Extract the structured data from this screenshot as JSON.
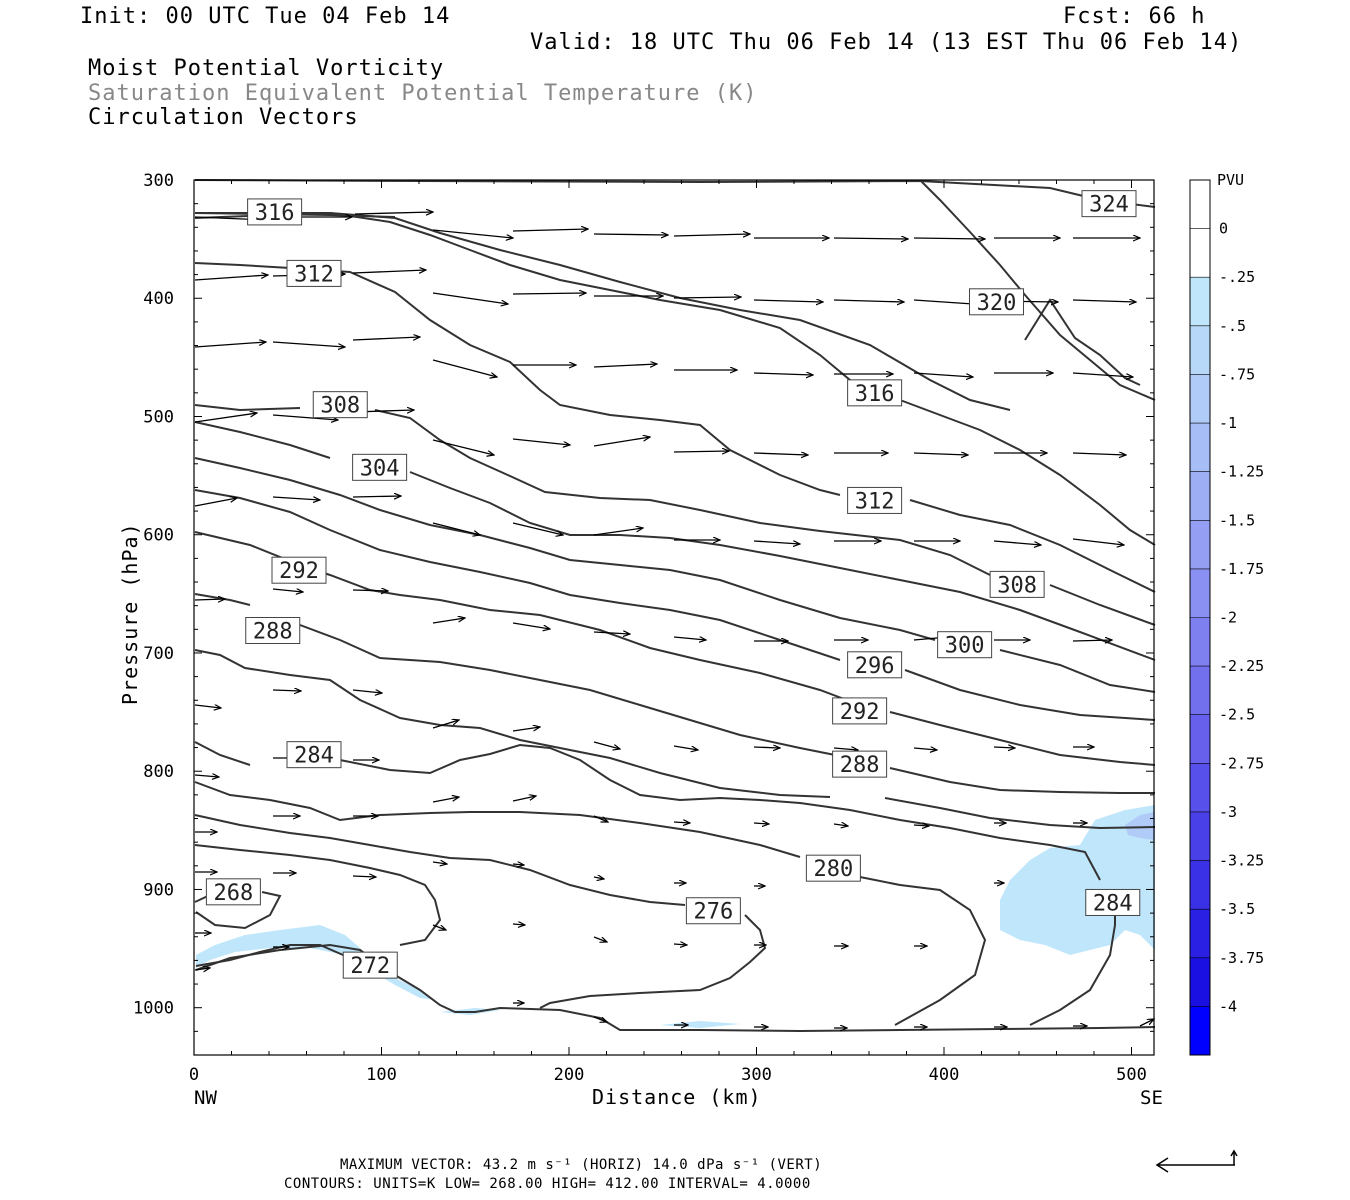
{
  "header": {
    "init": "Init: 00 UTC Tue 04 Feb 14",
    "fcst": "Fcst:   66 h",
    "valid": "Valid: 18 UTC Thu 06 Feb 14 (13 EST Thu 06 Feb 14)",
    "field1": "Moist Potential Vorticity",
    "field2": "Saturation Equivalent Potential Temperature (K)",
    "field3": "Circulation Vectors"
  },
  "footer": {
    "max_vector": "MAXIMUM VECTOR:  43.2 m s⁻¹ (HORIZ)        14.0 dPa s⁻¹ (VERT)",
    "contours": "CONTOURS:  UNITS=K  LOW=  268.00       HIGH=  412.00       INTERVAL=    4.0000"
  },
  "chart_data": {
    "type": "contour",
    "xlabel": "Distance (km)",
    "ylabel": "Pressure (hPa)",
    "xlim": [
      0,
      512
    ],
    "ylim": [
      300,
      1040
    ],
    "x_ticks": [
      0,
      100,
      200,
      300,
      400,
      500
    ],
    "y_ticks": [
      300,
      400,
      500,
      600,
      700,
      800,
      900,
      1000
    ],
    "x_end_labels": {
      "left": "NW",
      "right": "SE"
    },
    "colorbar": {
      "label": "PVU",
      "levels": [
        "0",
        "-.25",
        "-.5",
        "-.75",
        "-1",
        "-1.25",
        "-1.5",
        "-1.75",
        "-2",
        "-2.25",
        "-2.5",
        "-2.75",
        "-3",
        "-3.25",
        "-3.5",
        "-3.75",
        "-4"
      ],
      "colors": [
        "#ffffff",
        "#ffffff",
        "#bfe6fb",
        "#b8d8fa",
        "#b0cbf8",
        "#a7bdf6",
        "#9eaef5",
        "#949ff3",
        "#8a90f1",
        "#7f80ef",
        "#7370ee",
        "#6660ec",
        "#5850ea",
        "#4a40e8",
        "#3a30e6",
        "#2a20e4",
        "#1a10e2",
        "#0000ff"
      ]
    },
    "contour_labels": [
      {
        "label": "316",
        "x": 43,
        "p": 327
      },
      {
        "label": "312",
        "x": 64,
        "p": 379
      },
      {
        "label": "308",
        "x": 78,
        "p": 490
      },
      {
        "label": "304",
        "x": 99,
        "p": 543
      },
      {
        "label": "292",
        "x": 56,
        "p": 630
      },
      {
        "label": "288",
        "x": 42,
        "p": 681
      },
      {
        "label": "284",
        "x": 64,
        "p": 786
      },
      {
        "label": "268",
        "x": 21,
        "p": 902
      },
      {
        "label": "272",
        "x": 94,
        "p": 964
      },
      {
        "label": "276",
        "x": 277,
        "p": 918
      },
      {
        "label": "280",
        "x": 341,
        "p": 882
      },
      {
        "label": "284",
        "x": 490,
        "p": 911
      },
      {
        "label": "288",
        "x": 355,
        "p": 794
      },
      {
        "label": "292",
        "x": 355,
        "p": 749
      },
      {
        "label": "296",
        "x": 363,
        "p": 710
      },
      {
        "label": "300",
        "x": 411,
        "p": 693
      },
      {
        "label": "308",
        "x": 439,
        "p": 642
      },
      {
        "label": "312",
        "x": 363,
        "p": 571
      },
      {
        "label": "316",
        "x": 363,
        "p": 480
      },
      {
        "label": "320",
        "x": 428,
        "p": 403
      },
      {
        "label": "324",
        "x": 488,
        "p": 320
      }
    ]
  }
}
